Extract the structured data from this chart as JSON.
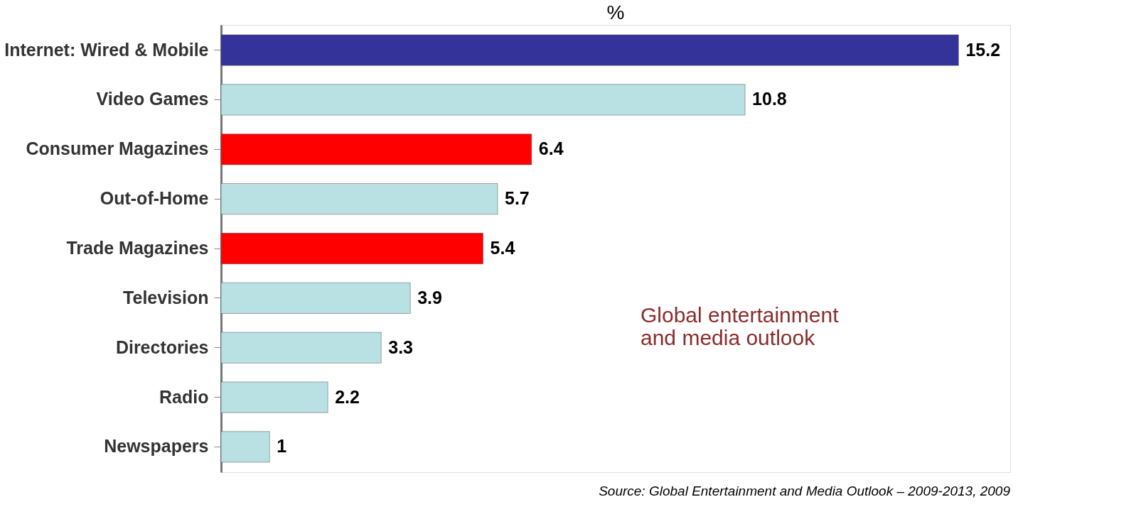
{
  "chart_data": {
    "type": "bar",
    "orientation": "horizontal",
    "title": "%",
    "categories": [
      "Internet: Wired & Mobile",
      "Video Games",
      "Consumer Magazines",
      "Out-of-Home",
      "Trade Magazines",
      "Television",
      "Directories",
      "Radio",
      "Newspapers"
    ],
    "values": [
      15.2,
      10.8,
      6.4,
      5.7,
      5.4,
      3.9,
      3.3,
      2.2,
      1
    ],
    "colors": [
      "#333399",
      "#b9e0e3",
      "#ff0000",
      "#b9e0e3",
      "#ff0000",
      "#b9e0e3",
      "#b9e0e3",
      "#b9e0e3",
      "#b9e0e3"
    ],
    "data_labels": true,
    "legend": false,
    "annotations": [
      "Global entertainment\nand media outlook",
      "Source: Global Entertainment and Media Outlook – 2009-2013, 2009"
    ]
  }
}
